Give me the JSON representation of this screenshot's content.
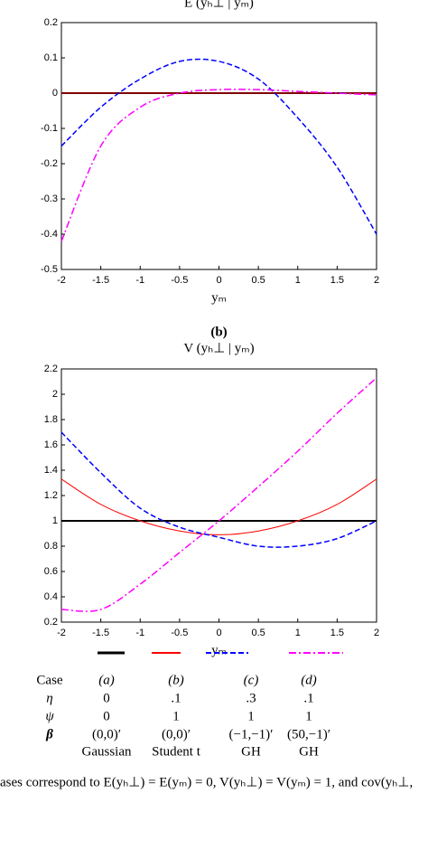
{
  "chart_data": [
    {
      "type": "line",
      "title": "E (yₕ⊥ | yₘ)",
      "xlabel": "yₘ",
      "x": [
        -2,
        -1.5,
        -1,
        -0.5,
        0,
        0.5,
        1,
        1.5,
        2
      ],
      "xlim": [
        -2,
        2
      ],
      "xticks": [
        -2,
        -1.5,
        -1,
        -0.5,
        0,
        0.5,
        1,
        1.5,
        2
      ],
      "ylim": [
        -0.5,
        0.2
      ],
      "yticks": [
        -0.5,
        -0.4,
        -0.3,
        -0.2,
        -0.1,
        0,
        0.1,
        0.2
      ],
      "series": [
        {
          "color": "#000000",
          "dash": "solid",
          "values": [
            0,
            0,
            0,
            0,
            0,
            0,
            0,
            0,
            0
          ]
        },
        {
          "color": "#ff0000",
          "dash": "solid",
          "values": [
            0,
            0,
            0,
            0,
            0,
            0,
            0,
            0,
            0
          ]
        },
        {
          "color": "#0000ff",
          "dash": "dashed",
          "values": [
            -0.15,
            -0.04,
            0.04,
            0.09,
            0.09,
            0.04,
            -0.07,
            -0.21,
            -0.4
          ]
        },
        {
          "color": "#ff00ff",
          "dash": "dashdot",
          "values": [
            -0.42,
            -0.15,
            -0.04,
            0,
            0.01,
            0.01,
            0.005,
            0,
            -0.005
          ]
        }
      ]
    },
    {
      "type": "line",
      "label": "(b)",
      "title": "V (yₕ⊥ | yₘ)",
      "xlabel": "yₘ",
      "x": [
        -2,
        -1.5,
        -1,
        -0.5,
        0,
        0.5,
        1,
        1.5,
        2
      ],
      "xlim": [
        -2,
        2
      ],
      "xticks": [
        -2,
        -1.5,
        -1,
        -0.5,
        0,
        0.5,
        1,
        1.5,
        2
      ],
      "ylim": [
        0.2,
        2.2
      ],
      "yticks": [
        0.2,
        0.4,
        0.6,
        0.8,
        1,
        1.2,
        1.4,
        1.6,
        1.8,
        2,
        2.2
      ],
      "series": [
        {
          "color": "#000000",
          "dash": "solid",
          "values": [
            1,
            1,
            1,
            1,
            1,
            1,
            1,
            1,
            1
          ]
        },
        {
          "color": "#ff0000",
          "dash": "solid",
          "values": [
            1.33,
            1.13,
            1.0,
            0.92,
            0.89,
            0.92,
            1.0,
            1.13,
            1.33
          ]
        },
        {
          "color": "#0000ff",
          "dash": "dashed",
          "values": [
            1.7,
            1.38,
            1.1,
            0.95,
            0.87,
            0.8,
            0.8,
            0.86,
            1.0
          ]
        },
        {
          "color": "#ff00ff",
          "dash": "dashdot",
          "values": [
            0.3,
            0.3,
            0.5,
            0.75,
            1.0,
            1.27,
            1.55,
            1.85,
            2.13
          ]
        }
      ]
    }
  ],
  "legend_table": {
    "header": [
      "Case",
      "(a)",
      "(b)",
      "(c)",
      "(d)"
    ],
    "rows": [
      {
        "label": "η",
        "cells": [
          "0",
          ".1",
          ".3",
          ".1"
        ]
      },
      {
        "label": "ψ",
        "cells": [
          "0",
          "1",
          "1",
          "1"
        ]
      },
      {
        "label": "β",
        "cells": [
          "(0,0)′",
          "(0,0)′",
          "(−1,−1)′",
          "(50,−1)′"
        ]
      }
    ],
    "distribution": [
      "Gaussian",
      "Student t",
      "GH",
      "GH"
    ]
  },
  "caption": "ases correspond to E(yₕ⊥) = E(yₘ) = 0, V(yₕ⊥) = V(yₘ) = 1, and cov(yₕ⊥,"
}
